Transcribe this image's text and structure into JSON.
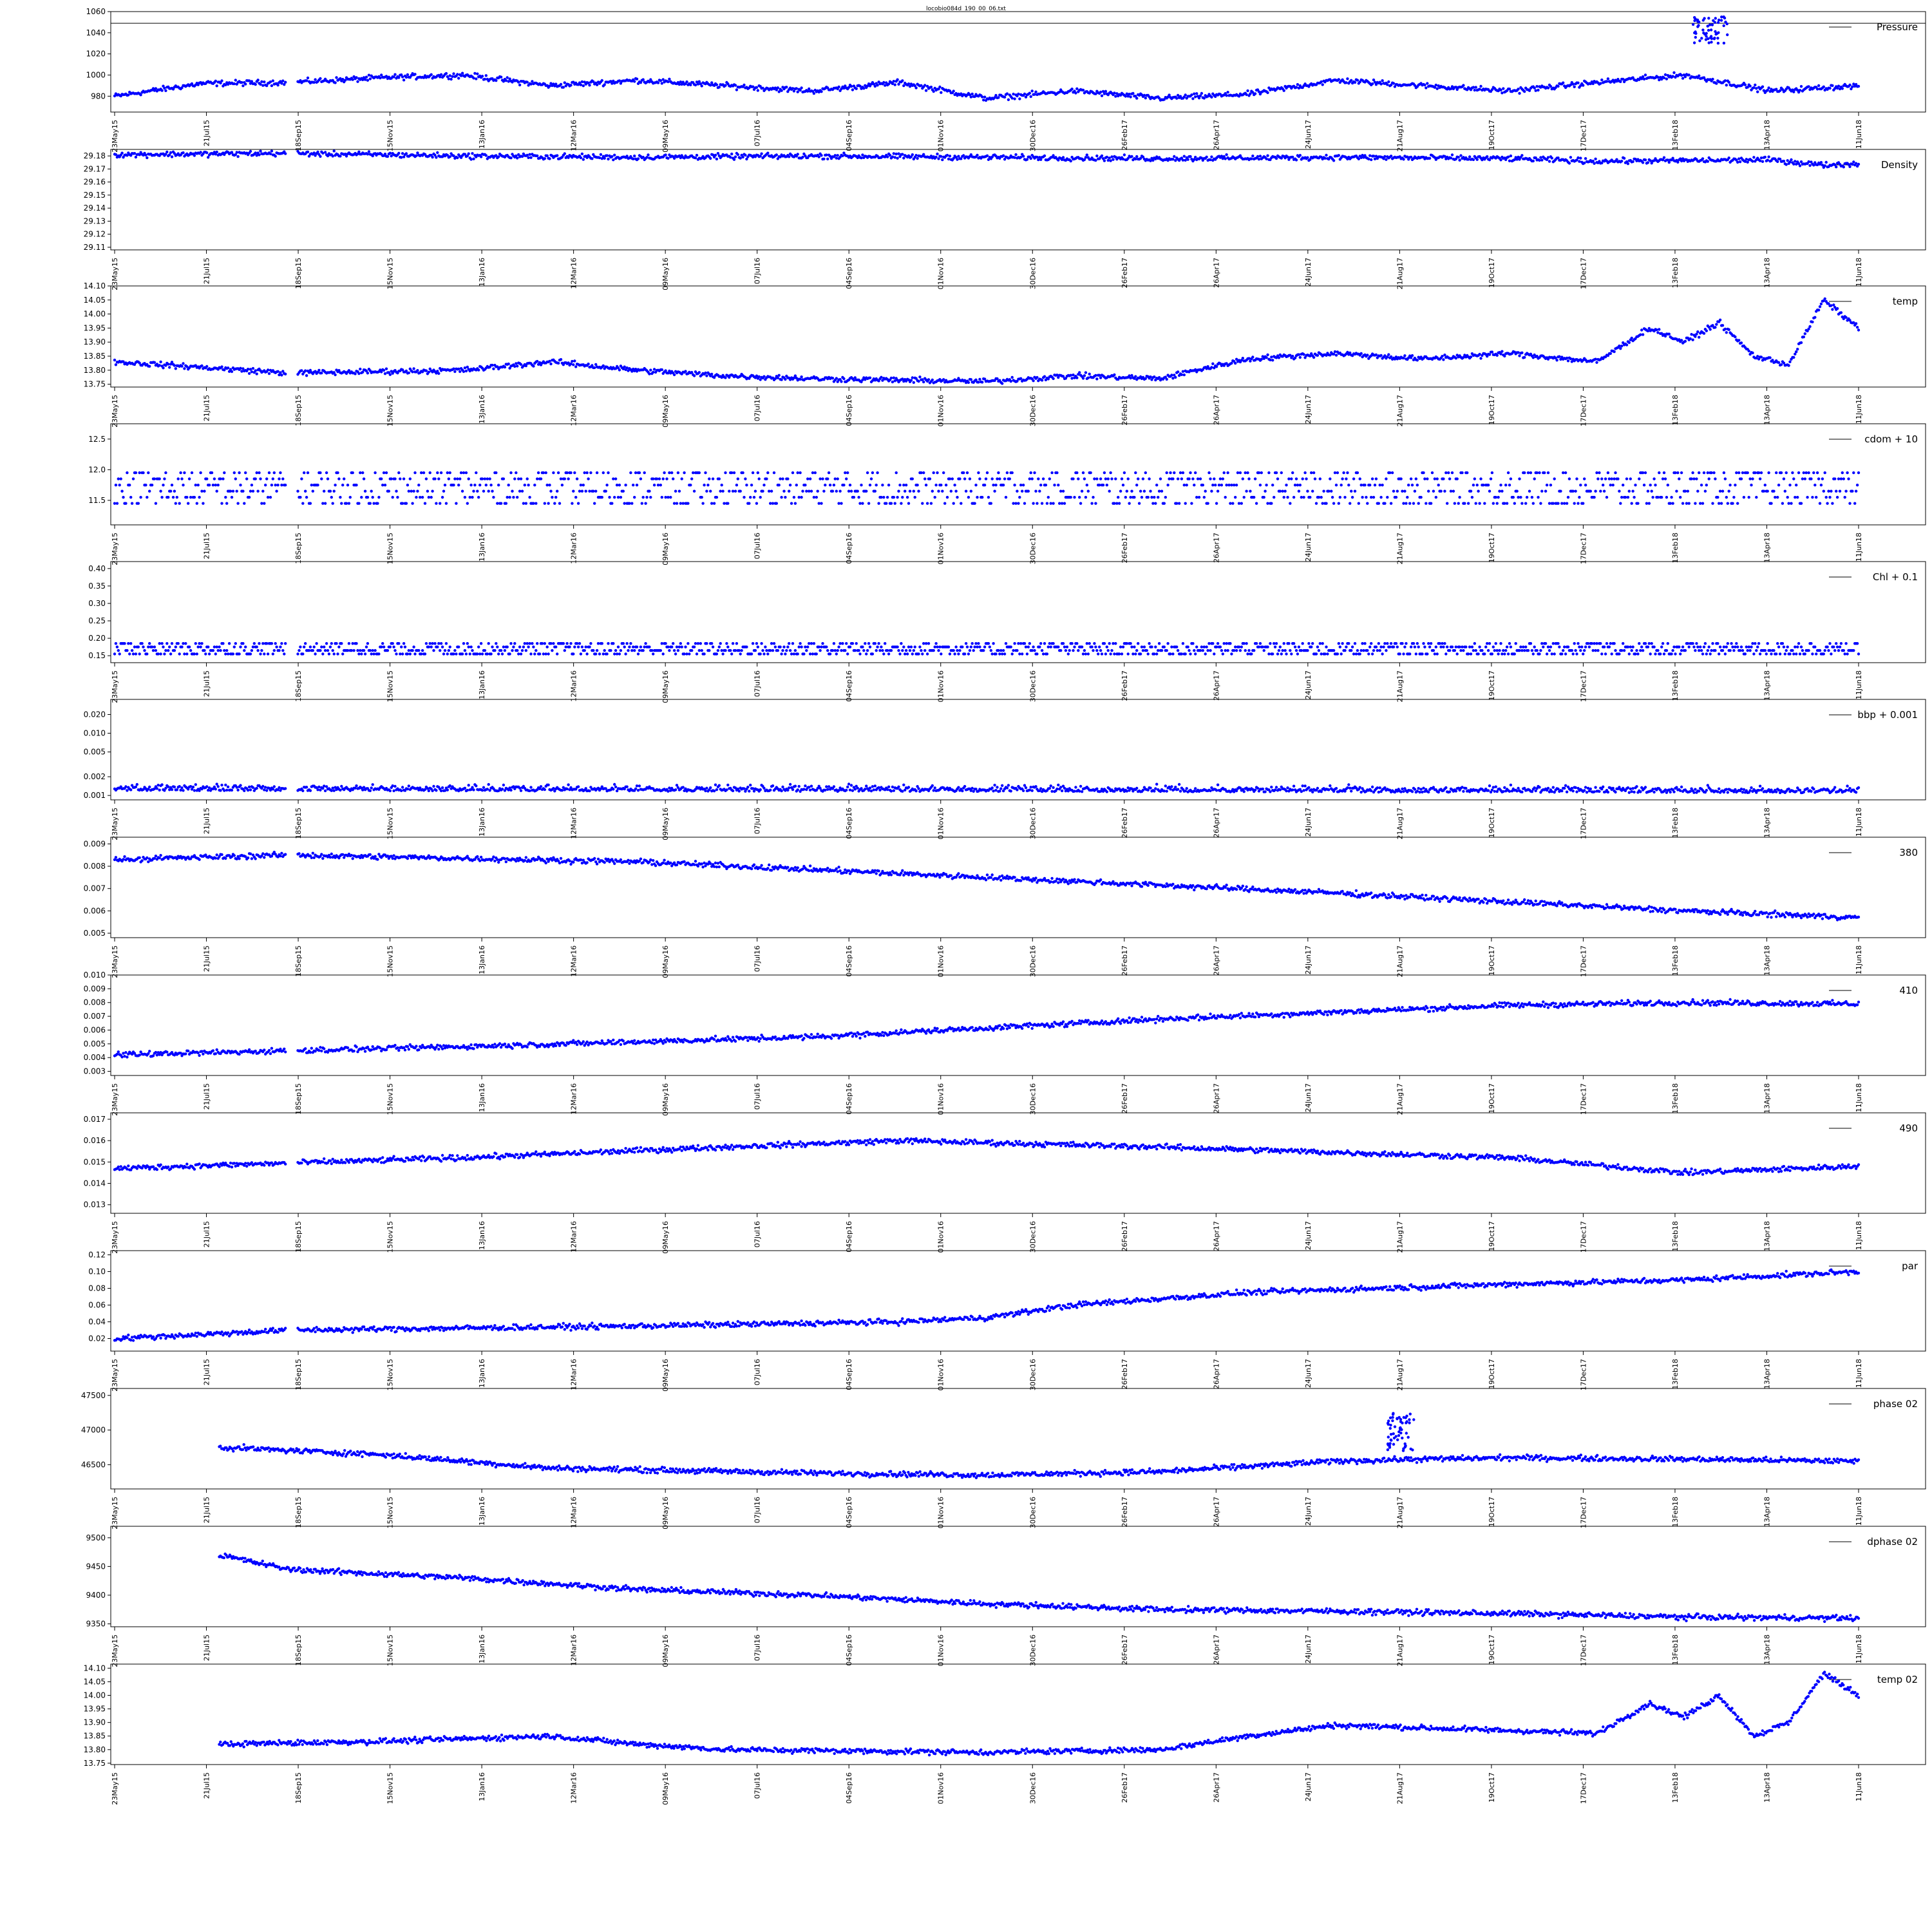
{
  "figure_title": "locobio084d_190_00_06.txt",
  "marker_color": "#0000ff",
  "x_dates": [
    "23May15",
    "21Jul15",
    "18Sep15",
    "15Nov15",
    "13Jan16",
    "12Mar16",
    "09May16",
    "07Jul16",
    "04Sep16",
    "01Nov16",
    "30Dec16",
    "26Feb17",
    "26Apr17",
    "24Jun17",
    "21Aug17",
    "19Oct17",
    "17Dec17",
    "13Feb18",
    "13Apr18",
    "11Jun18"
  ],
  "chart_data": [
    {
      "type": "scatter",
      "series": [
        {
          "name": "Pressure",
          "key": "pressure"
        }
      ],
      "ylim": [
        965,
        1060
      ],
      "yticks": [
        980,
        1000,
        1020,
        1040,
        1060
      ],
      "ytick_labels": [
        "980",
        "1000",
        "1020",
        "1040",
        "1060"
      ],
      "ref_line": 1049,
      "x_start": 0,
      "trend": [
        [
          0,
          980
        ],
        [
          0.05,
          992
        ],
        [
          0.1,
          993
        ],
        [
          0.16,
          998
        ],
        [
          0.2,
          1000
        ],
        [
          0.25,
          990
        ],
        [
          0.3,
          995
        ],
        [
          0.35,
          990
        ],
        [
          0.4,
          985
        ],
        [
          0.45,
          993
        ],
        [
          0.5,
          978
        ],
        [
          0.55,
          985
        ],
        [
          0.6,
          978
        ],
        [
          0.65,
          982
        ],
        [
          0.7,
          995
        ],
        [
          0.75,
          990
        ],
        [
          0.8,
          985
        ],
        [
          0.85,
          993
        ],
        [
          0.9,
          1000
        ],
        [
          0.95,
          985
        ],
        [
          1,
          990
        ]
      ],
      "features": [
        {
          "x0": 0.905,
          "x1": 0.925,
          "y0": 1030,
          "y1": 1055
        }
      ]
    },
    {
      "type": "scatter",
      "series": [
        {
          "name": "Density",
          "key": "density"
        }
      ],
      "ylim": [
        29.108,
        29.185
      ],
      "yticks": [
        29.11,
        29.12,
        29.13,
        29.14,
        29.15,
        29.16,
        29.17,
        29.18
      ],
      "ytick_labels": [
        "29.11",
        "29.12",
        "29.13",
        "29.14",
        "29.15",
        "29.16",
        "29.17",
        "29.18"
      ],
      "x_start": 0,
      "trend": [
        [
          0,
          29.181
        ],
        [
          0.1,
          29.182
        ],
        [
          0.2,
          29.18
        ],
        [
          0.3,
          29.179
        ],
        [
          0.4,
          29.18
        ],
        [
          0.5,
          29.179
        ],
        [
          0.6,
          29.178
        ],
        [
          0.7,
          29.179
        ],
        [
          0.8,
          29.178
        ],
        [
          0.85,
          29.176
        ],
        [
          0.95,
          29.177
        ],
        [
          0.98,
          29.173
        ],
        [
          1,
          29.174
        ]
      ]
    },
    {
      "type": "scatter",
      "series": [
        {
          "name": "temp",
          "key": "temp"
        }
      ],
      "ylim": [
        13.74,
        14.1
      ],
      "yticks": [
        13.75,
        13.8,
        13.85,
        13.9,
        13.95,
        14.0,
        14.05,
        14.1
      ],
      "ytick_labels": [
        "13.75",
        "13.80",
        "13.85",
        "13.90",
        "13.95",
        "14.00",
        "14.05",
        "14.10"
      ],
      "x_start": 0,
      "trend": [
        [
          0,
          13.83
        ],
        [
          0.1,
          13.79
        ],
        [
          0.2,
          13.8
        ],
        [
          0.25,
          13.83
        ],
        [
          0.3,
          13.8
        ],
        [
          0.35,
          13.78
        ],
        [
          0.4,
          13.77
        ],
        [
          0.5,
          13.76
        ],
        [
          0.55,
          13.78
        ],
        [
          0.6,
          13.77
        ],
        [
          0.62,
          13.8
        ],
        [
          0.65,
          13.84
        ],
        [
          0.7,
          13.86
        ],
        [
          0.75,
          13.84
        ],
        [
          0.8,
          13.86
        ],
        [
          0.85,
          13.83
        ],
        [
          0.88,
          13.95
        ],
        [
          0.9,
          13.9
        ],
        [
          0.92,
          13.97
        ],
        [
          0.94,
          13.85
        ],
        [
          0.96,
          13.82
        ],
        [
          0.98,
          14.05
        ],
        [
          1,
          13.95
        ]
      ]
    },
    {
      "type": "scatter",
      "series": [
        {
          "name": "cdom + 10",
          "key": "cdom"
        }
      ],
      "ylim": [
        11.1,
        12.75
      ],
      "yticks": [
        11.5,
        12.0,
        12.5
      ],
      "ytick_labels": [
        "11.5",
        "12.0",
        "12.5"
      ],
      "x_start": 0,
      "levels": [
        11.45,
        11.55,
        11.65,
        11.75,
        11.85,
        11.95
      ],
      "trend": [
        [
          0,
          11.7
        ],
        [
          1,
          11.6
        ]
      ]
    },
    {
      "type": "scatter",
      "series": [
        {
          "name": "Chl + 0.1",
          "key": "chl"
        }
      ],
      "ylim": [
        0.13,
        0.42
      ],
      "yticks": [
        0.15,
        0.2,
        0.25,
        0.3,
        0.35,
        0.4
      ],
      "ytick_labels": [
        "0.15",
        "0.20",
        "0.25",
        "0.30",
        "0.35",
        "0.40"
      ],
      "x_start": 0,
      "levels": [
        0.155,
        0.165,
        0.175,
        0.185
      ],
      "trend": [
        [
          0,
          0.17
        ],
        [
          1,
          0.165
        ]
      ]
    },
    {
      "type": "scatter",
      "series": [
        {
          "name": "bbp + 0.001",
          "key": "bbp"
        }
      ],
      "ylim": [
        0.00085,
        0.035
      ],
      "log": true,
      "yticks": [
        0.001,
        0.002,
        0.005,
        0.01,
        0.02
      ],
      "ytick_labels": [
        "0.001",
        "0.002",
        "0.005",
        "0.010",
        "0.020"
      ],
      "x_start": 0,
      "trend": [
        [
          0,
          0.0012
        ],
        [
          1,
          0.0011
        ]
      ]
    },
    {
      "type": "scatter",
      "series": [
        {
          "name": "380",
          "key": "e380"
        }
      ],
      "ylim": [
        0.0048,
        0.0093
      ],
      "yticks": [
        0.005,
        0.006,
        0.007,
        0.008,
        0.009
      ],
      "ytick_labels": [
        "0.005",
        "0.006",
        "0.007",
        "0.008",
        "0.009"
      ],
      "x_start": 0,
      "trend": [
        [
          0,
          0.0083
        ],
        [
          0.1,
          0.0085
        ],
        [
          0.3,
          0.0082
        ],
        [
          0.5,
          0.0075
        ],
        [
          0.7,
          0.0068
        ],
        [
          0.9,
          0.006
        ],
        [
          1,
          0.0057
        ]
      ]
    },
    {
      "type": "scatter",
      "series": [
        {
          "name": "410",
          "key": "e410"
        }
      ],
      "ylim": [
        0.0027,
        0.01
      ],
      "yticks": [
        0.003,
        0.004,
        0.005,
        0.006,
        0.007,
        0.008,
        0.009,
        0.01
      ],
      "ytick_labels": [
        "0.003",
        "0.004",
        "0.005",
        "0.006",
        "0.007",
        "0.008",
        "0.009",
        "0.010"
      ],
      "x_start": 0,
      "trend": [
        [
          0,
          0.0042
        ],
        [
          0.2,
          0.0048
        ],
        [
          0.4,
          0.0055
        ],
        [
          0.6,
          0.0068
        ],
        [
          0.8,
          0.0078
        ],
        [
          0.9,
          0.008
        ],
        [
          1,
          0.0079
        ]
      ]
    },
    {
      "type": "scatter",
      "series": [
        {
          "name": "490",
          "key": "e490"
        }
      ],
      "ylim": [
        0.0126,
        0.0173
      ],
      "yticks": [
        0.013,
        0.014,
        0.015,
        0.016,
        0.017
      ],
      "ytick_labels": [
        "0.013",
        "0.014",
        "0.015",
        "0.016",
        "0.017"
      ],
      "x_start": 0,
      "trend": [
        [
          0,
          0.0147
        ],
        [
          0.2,
          0.0152
        ],
        [
          0.35,
          0.0157
        ],
        [
          0.45,
          0.016
        ],
        [
          0.6,
          0.0157
        ],
        [
          0.8,
          0.0152
        ],
        [
          0.9,
          0.0145
        ],
        [
          1,
          0.0148
        ]
      ]
    },
    {
      "type": "scatter",
      "series": [
        {
          "name": "par",
          "key": "par"
        }
      ],
      "ylim": [
        0.005,
        0.125
      ],
      "yticks": [
        0.02,
        0.04,
        0.06,
        0.08,
        0.1,
        0.12
      ],
      "ytick_labels": [
        "0.02",
        "0.04",
        "0.06",
        "0.08",
        "0.10",
        "0.12"
      ],
      "x_start": 0,
      "trend": [
        [
          0,
          0.02
        ],
        [
          0.1,
          0.03
        ],
        [
          0.3,
          0.035
        ],
        [
          0.45,
          0.04
        ],
        [
          0.5,
          0.045
        ],
        [
          0.55,
          0.06
        ],
        [
          0.65,
          0.075
        ],
        [
          0.8,
          0.085
        ],
        [
          0.9,
          0.09
        ],
        [
          1,
          0.1
        ]
      ]
    },
    {
      "type": "scatter",
      "series": [
        {
          "name": "phase 02",
          "key": "phase"
        }
      ],
      "ylim": [
        46150,
        47600
      ],
      "yticks": [
        46500,
        47000,
        47500
      ],
      "ytick_labels": [
        "46500",
        "47000",
        "47500"
      ],
      "x_start": 0.06,
      "trend": [
        [
          0.06,
          46750
        ],
        [
          0.15,
          46650
        ],
        [
          0.25,
          46450
        ],
        [
          0.4,
          46380
        ],
        [
          0.5,
          46350
        ],
        [
          0.6,
          46400
        ],
        [
          0.7,
          46550
        ],
        [
          0.75,
          46580
        ],
        [
          0.8,
          46600
        ],
        [
          0.9,
          46580
        ],
        [
          1,
          46550
        ]
      ],
      "features": [
        {
          "x0": 0.73,
          "x1": 0.745,
          "y0": 46700,
          "y1": 47250
        }
      ]
    },
    {
      "type": "scatter",
      "series": [
        {
          "name": "dphase 02",
          "key": "dphase"
        }
      ],
      "ylim": [
        9345,
        9520
      ],
      "yticks": [
        9350,
        9400,
        9450,
        9500
      ],
      "ytick_labels": [
        "9350",
        "9400",
        "9450",
        "9500"
      ],
      "x_start": 0.06,
      "trend": [
        [
          0.06,
          9470
        ],
        [
          0.1,
          9445
        ],
        [
          0.2,
          9430
        ],
        [
          0.3,
          9410
        ],
        [
          0.4,
          9400
        ],
        [
          0.5,
          9385
        ],
        [
          0.6,
          9375
        ],
        [
          0.7,
          9372
        ],
        [
          0.8,
          9368
        ],
        [
          0.9,
          9362
        ],
        [
          1,
          9360
        ]
      ]
    },
    {
      "type": "scatter",
      "series": [
        {
          "name": "temp 02",
          "key": "temp02"
        }
      ],
      "ylim": [
        13.745,
        14.115
      ],
      "yticks": [
        13.75,
        13.8,
        13.85,
        13.9,
        13.95,
        14.0,
        14.05,
        14.1
      ],
      "ytick_labels": [
        "13.75",
        "13.80",
        "13.85",
        "13.90",
        "13.95",
        "14.00",
        "14.05",
        "14.10"
      ],
      "x_start": 0.06,
      "trend": [
        [
          0.06,
          13.82
        ],
        [
          0.15,
          13.83
        ],
        [
          0.25,
          13.85
        ],
        [
          0.3,
          13.82
        ],
        [
          0.35,
          13.8
        ],
        [
          0.5,
          13.79
        ],
        [
          0.6,
          13.8
        ],
        [
          0.65,
          13.85
        ],
        [
          0.7,
          13.89
        ],
        [
          0.8,
          13.87
        ],
        [
          0.85,
          13.86
        ],
        [
          0.88,
          13.97
        ],
        [
          0.9,
          13.92
        ],
        [
          0.92,
          14.0
        ],
        [
          0.94,
          13.85
        ],
        [
          0.96,
          13.9
        ],
        [
          0.98,
          14.08
        ],
        [
          1,
          14.0
        ]
      ]
    }
  ]
}
